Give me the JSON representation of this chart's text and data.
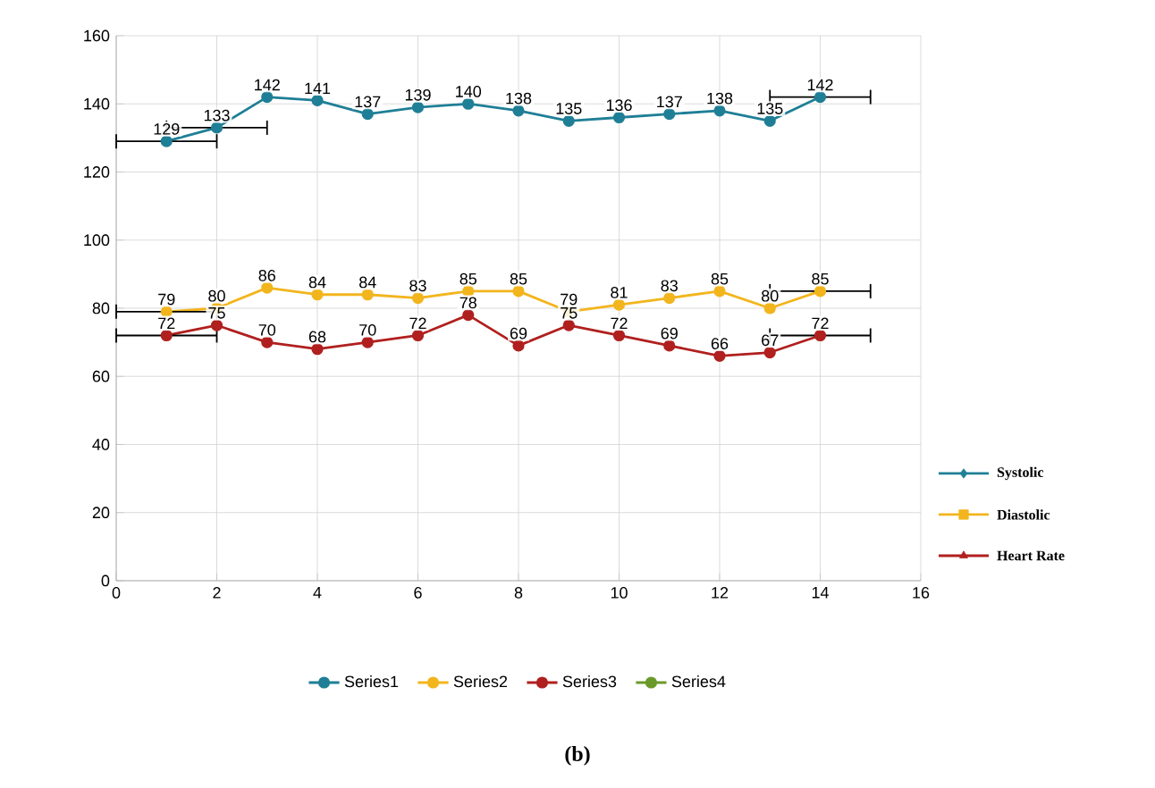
{
  "chart_data": {
    "type": "line",
    "title": "(b)",
    "annotations": [
      "Systolic",
      "Diastolic",
      "Heart Rate"
    ],
    "x": [
      1,
      2,
      3,
      4,
      5,
      6,
      7,
      8,
      9,
      10,
      11,
      12,
      13,
      14
    ],
    "series": [
      {
        "name": "Series1",
        "color": "#1f7f96",
        "values": [
          129,
          133,
          142,
          141,
          137,
          139,
          140,
          138,
          135,
          136,
          137,
          138,
          135,
          142
        ],
        "xerrors": [
          1,
          1,
          null,
          null,
          null,
          null,
          null,
          null,
          null,
          null,
          null,
          null,
          null,
          1
        ]
      },
      {
        "name": "Series2",
        "color": "#f2b51d",
        "values": [
          79,
          80,
          86,
          84,
          84,
          83,
          85,
          85,
          79,
          81,
          83,
          85,
          80,
          85
        ],
        "xerrors": [
          1,
          null,
          null,
          null,
          null,
          null,
          null,
          null,
          null,
          null,
          null,
          null,
          null,
          1
        ]
      },
      {
        "name": "Series3",
        "color": "#b0201f",
        "values": [
          72,
          75,
          70,
          68,
          70,
          72,
          78,
          69,
          75,
          72,
          69,
          66,
          67,
          72
        ],
        "xerrors": [
          1,
          null,
          null,
          null,
          null,
          null,
          null,
          null,
          null,
          null,
          null,
          null,
          null,
          1
        ]
      },
      {
        "name": "Series4",
        "color": "#6a9a2a",
        "values": [
          null,
          null,
          null,
          null,
          null,
          null,
          null,
          null,
          null,
          null,
          null,
          null,
          null,
          null
        ]
      }
    ],
    "data_labels": true,
    "marker": "circle",
    "line_style": "solid",
    "grid": true,
    "legend": "bottom",
    "xlim": [
      0,
      16
    ],
    "xticks": [
      0,
      2,
      4,
      6,
      8,
      10,
      12,
      14,
      16
    ],
    "ylim": [
      0,
      160
    ],
    "yticks": [
      0,
      20,
      40,
      60,
      80,
      100,
      120,
      140,
      160
    ]
  }
}
